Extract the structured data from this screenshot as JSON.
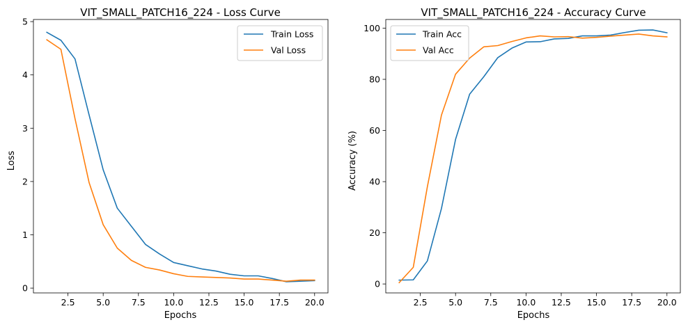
{
  "chart_data": [
    {
      "type": "line",
      "title": "VIT_SMALL_PATCH16_224 - Loss Curve",
      "xlabel": "Epochs",
      "ylabel": "Loss",
      "xlim": [
        0.05,
        20.95
      ],
      "ylim": [
        -0.09,
        5.04
      ],
      "xticks": [
        2.5,
        5.0,
        7.5,
        10.0,
        12.5,
        15.0,
        17.5,
        20.0
      ],
      "xtick_labels": [
        "2.5",
        "5.0",
        "7.5",
        "10.0",
        "12.5",
        "15.0",
        "17.5",
        "20.0"
      ],
      "yticks": [
        0,
        1,
        2,
        3,
        4,
        5
      ],
      "ytick_labels": [
        "0",
        "1",
        "2",
        "3",
        "4",
        "5"
      ],
      "grid": false,
      "legend_position": "upper right",
      "x": [
        1,
        2,
        3,
        4,
        5,
        6,
        7,
        8,
        9,
        10,
        11,
        12,
        13,
        14,
        15,
        16,
        17,
        18,
        19,
        20
      ],
      "series": [
        {
          "name": "Train Loss",
          "color": "#1f77b4",
          "values": [
            4.8,
            4.65,
            4.3,
            3.25,
            2.22,
            1.5,
            1.16,
            0.82,
            0.64,
            0.48,
            0.42,
            0.36,
            0.32,
            0.26,
            0.23,
            0.23,
            0.18,
            0.12,
            0.13,
            0.14
          ]
        },
        {
          "name": "Val Loss",
          "color": "#ff7f0e",
          "values": [
            4.66,
            4.48,
            3.18,
            1.98,
            1.19,
            0.75,
            0.52,
            0.39,
            0.34,
            0.27,
            0.22,
            0.21,
            0.2,
            0.19,
            0.17,
            0.17,
            0.15,
            0.13,
            0.15,
            0.15
          ]
        }
      ]
    },
    {
      "type": "line",
      "title": "VIT_SMALL_PATCH16_224 - Accuracy Curve",
      "xlabel": "Epochs",
      "ylabel": "Accuracy (%)",
      "xlim": [
        0.05,
        20.95
      ],
      "ylim": [
        -3.5,
        103.4
      ],
      "xticks": [
        2.5,
        5.0,
        7.5,
        10.0,
        12.5,
        15.0,
        17.5,
        20.0
      ],
      "xtick_labels": [
        "2.5",
        "5.0",
        "7.5",
        "10.0",
        "12.5",
        "15.0",
        "17.5",
        "20.0"
      ],
      "yticks": [
        0,
        20,
        40,
        60,
        80,
        100
      ],
      "ytick_labels": [
        "0",
        "20",
        "40",
        "60",
        "80",
        "100"
      ],
      "grid": false,
      "legend_position": "upper left",
      "x": [
        1,
        2,
        3,
        4,
        5,
        6,
        7,
        8,
        9,
        10,
        11,
        12,
        13,
        14,
        15,
        16,
        17,
        18,
        19,
        20
      ],
      "series": [
        {
          "name": "Train Acc",
          "color": "#1f77b4",
          "values": [
            1.5,
            1.6,
            9.0,
            29.5,
            56.5,
            74.2,
            81.0,
            88.5,
            92.2,
            94.6,
            94.7,
            95.8,
            96.0,
            97.0,
            97.0,
            97.3,
            98.3,
            99.2,
            99.3,
            98.2
          ]
        },
        {
          "name": "Val Acc",
          "color": "#ff7f0e",
          "values": [
            0.5,
            6.5,
            38.0,
            66.0,
            82.0,
            88.3,
            92.7,
            93.2,
            94.8,
            96.2,
            97.0,
            96.6,
            96.7,
            96.1,
            96.4,
            96.9,
            97.3,
            97.7,
            97.0,
            96.6
          ]
        }
      ]
    }
  ]
}
